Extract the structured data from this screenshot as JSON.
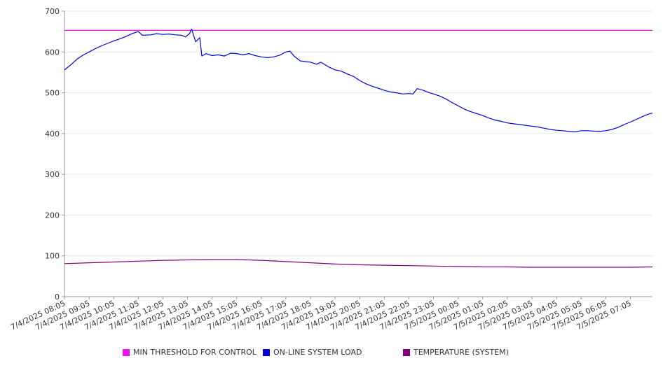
{
  "chart_data": {
    "type": "line",
    "title": "",
    "xlabel": "",
    "ylabel": "",
    "ylim": [
      0,
      700
    ],
    "yticks": [
      0,
      100,
      200,
      300,
      400,
      500,
      600,
      700
    ],
    "grid": "horizontal",
    "legend_position": "bottom",
    "x_tick_labels": [
      "7/4/2025 08:05",
      "7/4/2025 09:05",
      "7/4/2025 10:05",
      "7/4/2025 11:05",
      "7/4/2025 12:05",
      "7/4/2025 13:05",
      "7/4/2025 14:05",
      "7/4/2025 15:05",
      "7/4/2025 16:05",
      "7/4/2025 17:05",
      "7/4/2025 18:05",
      "7/4/2025 19:05",
      "7/4/2025 20:05",
      "7/4/2025 21:05",
      "7/4/2025 22:05",
      "7/4/2025 23:05",
      "7/5/2025 00:05",
      "7/5/2025 01:05",
      "7/5/2025 02:05",
      "7/5/2025 03:05",
      "7/5/2025 04:05",
      "7/5/2025 05:05",
      "7/5/2025 06:05",
      "7/5/2025 07:05"
    ],
    "x_range": [
      "7/4/2025 08:05",
      "7/5/2025 07:59"
    ],
    "series": [
      {
        "name": "MIN THRESHOLD FOR CONTROL",
        "color": "#ee11ee",
        "points": [
          [
            "7/4/2025 08:05",
            653
          ],
          [
            "7/5/2025 07:59",
            653
          ]
        ]
      },
      {
        "name": "ON-LINE SYSTEM LOAD",
        "color": "#0000dd",
        "points": [
          [
            "7/4/2025 08:05",
            556
          ],
          [
            "7/4/2025 08:20",
            568
          ],
          [
            "7/4/2025 08:35",
            582
          ],
          [
            "7/4/2025 08:50",
            592
          ],
          [
            "7/4/2025 09:05",
            600
          ],
          [
            "7/4/2025 09:20",
            608
          ],
          [
            "7/4/2025 09:35",
            615
          ],
          [
            "7/4/2025 09:50",
            621
          ],
          [
            "7/4/2025 10:05",
            627
          ],
          [
            "7/4/2025 10:20",
            632
          ],
          [
            "7/4/2025 10:35",
            638
          ],
          [
            "7/4/2025 10:50",
            645
          ],
          [
            "7/4/2025 11:05",
            650
          ],
          [
            "7/4/2025 11:15",
            641
          ],
          [
            "7/4/2025 11:35",
            642
          ],
          [
            "7/4/2025 11:50",
            645
          ],
          [
            "7/4/2025 12:05",
            643
          ],
          [
            "7/4/2025 12:20",
            644
          ],
          [
            "7/4/2025 12:35",
            642
          ],
          [
            "7/4/2025 12:50",
            641
          ],
          [
            "7/4/2025 13:00",
            637
          ],
          [
            "7/4/2025 13:10",
            645
          ],
          [
            "7/4/2025 13:15",
            656
          ],
          [
            "7/4/2025 13:25",
            625
          ],
          [
            "7/4/2025 13:30",
            630
          ],
          [
            "7/4/2025 13:35",
            635
          ],
          [
            "7/4/2025 13:40",
            590
          ],
          [
            "7/4/2025 13:50",
            596
          ],
          [
            "7/4/2025 14:05",
            591
          ],
          [
            "7/4/2025 14:20",
            593
          ],
          [
            "7/4/2025 14:35",
            590
          ],
          [
            "7/4/2025 14:50",
            597
          ],
          [
            "7/4/2025 15:05",
            596
          ],
          [
            "7/4/2025 15:20",
            593
          ],
          [
            "7/4/2025 15:35",
            596
          ],
          [
            "7/4/2025 15:50",
            591
          ],
          [
            "7/4/2025 16:05",
            588
          ],
          [
            "7/4/2025 16:20",
            586
          ],
          [
            "7/4/2025 16:35",
            588
          ],
          [
            "7/4/2025 16:50",
            592
          ],
          [
            "7/4/2025 17:05",
            600
          ],
          [
            "7/4/2025 17:15",
            602
          ],
          [
            "7/4/2025 17:25",
            590
          ],
          [
            "7/4/2025 17:40",
            578
          ],
          [
            "7/4/2025 18:05",
            575
          ],
          [
            "7/4/2025 18:20",
            570
          ],
          [
            "7/4/2025 18:30",
            575
          ],
          [
            "7/4/2025 18:50",
            563
          ],
          [
            "7/4/2025 19:05",
            556
          ],
          [
            "7/4/2025 19:20",
            553
          ],
          [
            "7/4/2025 19:35",
            546
          ],
          [
            "7/4/2025 19:50",
            540
          ],
          [
            "7/4/2025 20:05",
            530
          ],
          [
            "7/4/2025 20:20",
            522
          ],
          [
            "7/4/2025 20:35",
            516
          ],
          [
            "7/4/2025 20:50",
            511
          ],
          [
            "7/4/2025 21:05",
            506
          ],
          [
            "7/4/2025 21:20",
            502
          ],
          [
            "7/4/2025 21:35",
            500
          ],
          [
            "7/4/2025 21:50",
            497
          ],
          [
            "7/4/2025 22:05",
            498
          ],
          [
            "7/4/2025 22:15",
            497
          ],
          [
            "7/4/2025 22:25",
            510
          ],
          [
            "7/4/2025 22:40",
            506
          ],
          [
            "7/4/2025 22:55",
            500
          ],
          [
            "7/4/2025 23:05",
            497
          ],
          [
            "7/4/2025 23:20",
            492
          ],
          [
            "7/4/2025 23:35",
            485
          ],
          [
            "7/4/2025 23:50",
            476
          ],
          [
            "7/5/2025 00:05",
            468
          ],
          [
            "7/5/2025 00:20",
            460
          ],
          [
            "7/5/2025 00:35",
            454
          ],
          [
            "7/5/2025 00:50",
            449
          ],
          [
            "7/5/2025 01:05",
            444
          ],
          [
            "7/5/2025 01:20",
            438
          ],
          [
            "7/5/2025 01:35",
            433
          ],
          [
            "7/5/2025 01:50",
            430
          ],
          [
            "7/5/2025 02:05",
            426
          ],
          [
            "7/5/2025 02:20",
            424
          ],
          [
            "7/5/2025 02:35",
            422
          ],
          [
            "7/5/2025 02:50",
            420
          ],
          [
            "7/5/2025 03:05",
            418
          ],
          [
            "7/5/2025 03:20",
            416
          ],
          [
            "7/5/2025 03:35",
            413
          ],
          [
            "7/5/2025 03:50",
            410
          ],
          [
            "7/5/2025 04:05",
            408
          ],
          [
            "7/5/2025 04:20",
            407
          ],
          [
            "7/5/2025 04:35",
            405
          ],
          [
            "7/5/2025 04:50",
            404
          ],
          [
            "7/5/2025 05:05",
            407
          ],
          [
            "7/5/2025 05:20",
            407
          ],
          [
            "7/5/2025 05:35",
            406
          ],
          [
            "7/5/2025 05:50",
            405
          ],
          [
            "7/5/2025 06:05",
            407
          ],
          [
            "7/5/2025 06:20",
            410
          ],
          [
            "7/5/2025 06:35",
            415
          ],
          [
            "7/5/2025 06:50",
            422
          ],
          [
            "7/5/2025 07:05",
            428
          ],
          [
            "7/5/2025 07:20",
            435
          ],
          [
            "7/5/2025 07:35",
            442
          ],
          [
            "7/5/2025 07:50",
            448
          ],
          [
            "7/5/2025 07:59",
            450
          ]
        ]
      },
      {
        "name": "TEMPERATURE (SYSTEM)",
        "color": "#800080",
        "points": [
          [
            "7/4/2025 08:05",
            81
          ],
          [
            "7/4/2025 09:05",
            83
          ],
          [
            "7/4/2025 10:05",
            85
          ],
          [
            "7/4/2025 11:05",
            87
          ],
          [
            "7/4/2025 12:05",
            89
          ],
          [
            "7/4/2025 13:05",
            90
          ],
          [
            "7/4/2025 14:05",
            91
          ],
          [
            "7/4/2025 15:05",
            91
          ],
          [
            "7/4/2025 16:05",
            89
          ],
          [
            "7/4/2025 17:05",
            86
          ],
          [
            "7/4/2025 18:05",
            83
          ],
          [
            "7/4/2025 19:05",
            80
          ],
          [
            "7/4/2025 20:05",
            78
          ],
          [
            "7/4/2025 21:05",
            77
          ],
          [
            "7/4/2025 22:05",
            76
          ],
          [
            "7/4/2025 23:05",
            75
          ],
          [
            "7/5/2025 00:05",
            74
          ],
          [
            "7/5/2025 01:05",
            73
          ],
          [
            "7/5/2025 02:05",
            73
          ],
          [
            "7/5/2025 03:05",
            72
          ],
          [
            "7/5/2025 04:05",
            72
          ],
          [
            "7/5/2025 05:05",
            72
          ],
          [
            "7/5/2025 06:05",
            72
          ],
          [
            "7/5/2025 07:05",
            72
          ],
          [
            "7/5/2025 07:59",
            73
          ]
        ]
      }
    ]
  }
}
